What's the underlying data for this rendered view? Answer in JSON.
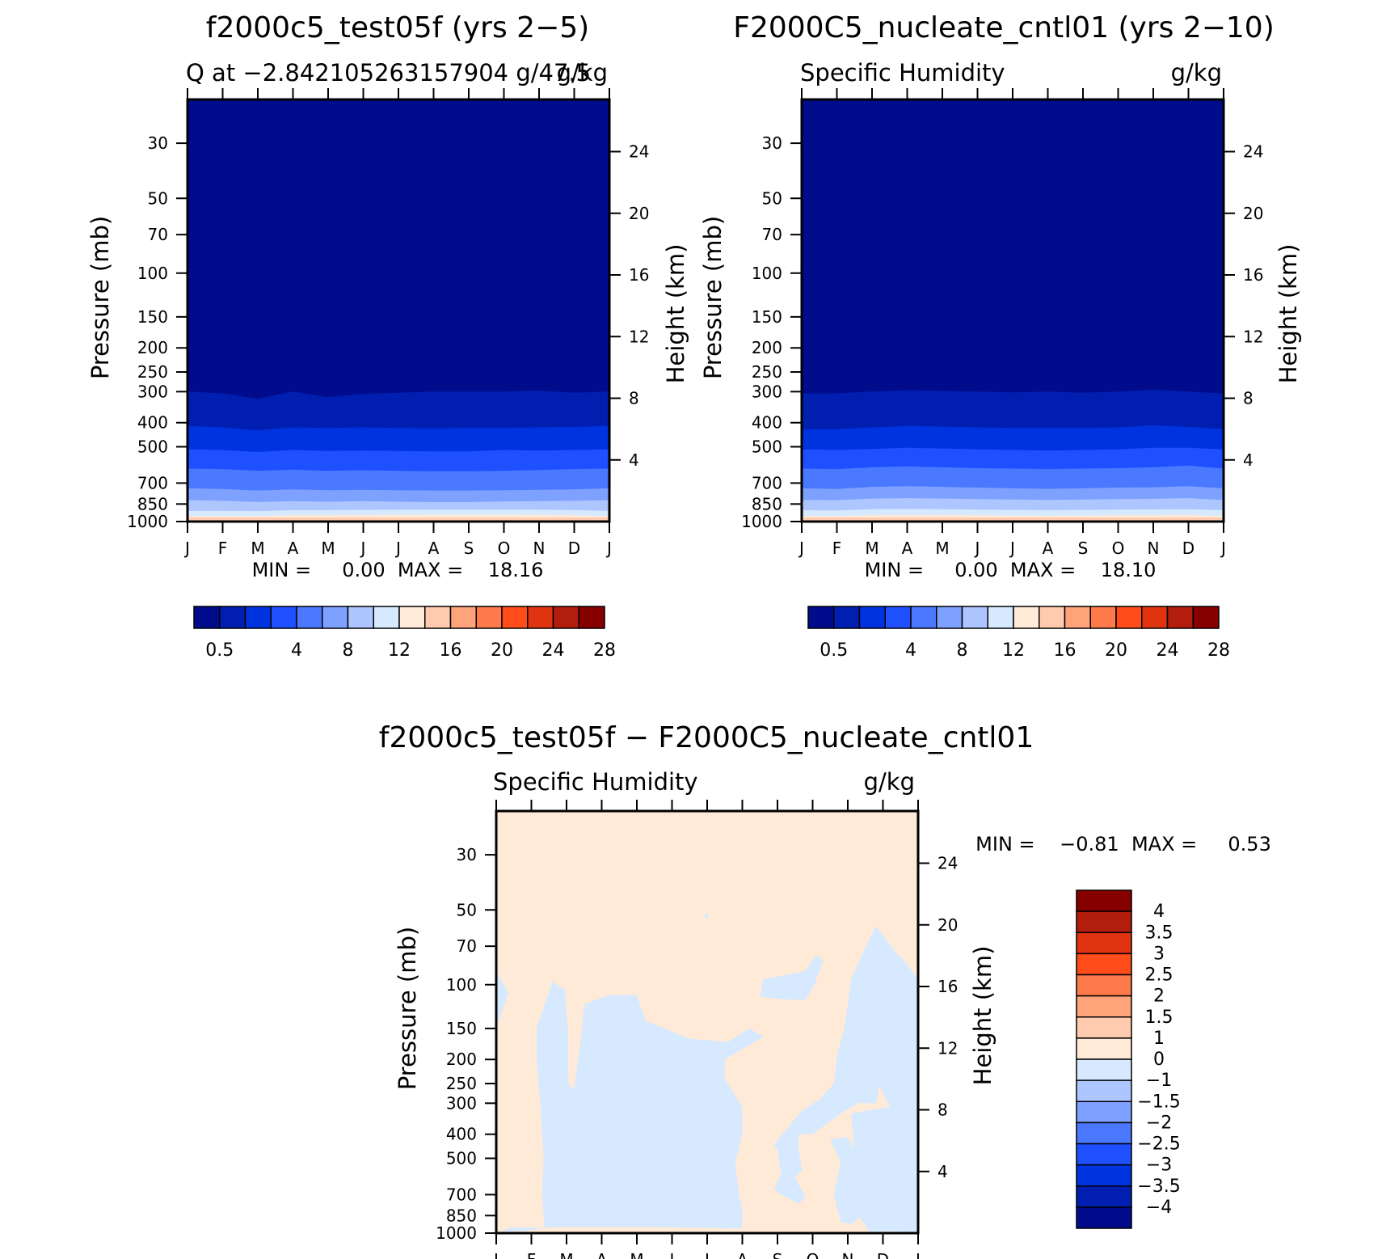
{
  "panels": [
    {
      "title": "f2000c5_test05f (yrs 2−5)",
      "left_string": "Q  at  −2.842105263157904 g/47.5",
      "right_string": "g/kg",
      "stats": "MIN =     0.00  MAX =    18.16",
      "ylabel": "Pressure  (mb)",
      "ylabel_right": "Height  (km)"
    },
    {
      "title": "F2000C5_nucleate_cntl01 (yrs 2−10)",
      "left_string": "Specific Humidity",
      "right_string": "g/kg",
      "stats": "MIN =     0.00  MAX =    18.10",
      "ylabel": "Pressure  (mb)",
      "ylabel_right": "Height  (km)"
    },
    {
      "title": "f2000c5_test05f − F2000C5_nucleate_cntl01",
      "left_string": "Specific Humidity",
      "right_string": "g/kg",
      "stats": "MIN =    −0.81  MAX =     0.53",
      "ylabel": "Pressure  (mb)",
      "ylabel_right": "Height  (km)"
    }
  ],
  "colors": {
    "abs_palette": [
      "#000c8b",
      "#001fb1",
      "#0033e0",
      "#1f50ff",
      "#4a79ff",
      "#7ea0ff",
      "#aec6ff",
      "#d6e9ff",
      "#ffead8",
      "#ffcbb0",
      "#ffa47a",
      "#ff7a4a",
      "#ff4c19",
      "#e03410",
      "#b31d0b",
      "#870000"
    ],
    "diff_palette": [
      "#000c8b",
      "#001fb1",
      "#0033e0",
      "#1f50ff",
      "#4a79ff",
      "#7ea0ff",
      "#aec6ff",
      "#d6e9ff",
      "#ffead8",
      "#ffcbb0",
      "#ffa47a",
      "#ff7a4a",
      "#ff4c19",
      "#e03410",
      "#b31d0b",
      "#870000"
    ]
  },
  "chart_data": [
    {
      "type": "heatmap",
      "title": "f2000c5_test05f (yrs 2−5)",
      "x_ticks": [
        "J",
        "F",
        "M",
        "A",
        "M",
        "J",
        "J",
        "A",
        "S",
        "O",
        "N",
        "D",
        "J"
      ],
      "y_ticks": [
        30,
        50,
        70,
        100,
        150,
        200,
        250,
        300,
        400,
        500,
        700,
        850,
        1000
      ],
      "y_ticks_right": [
        24,
        20,
        16,
        12,
        8,
        4
      ],
      "xlabel": "",
      "ylabel": "Pressure  (mb)",
      "ylabel_right": "Height  (km)",
      "ylim": [
        1000,
        20
      ],
      "y_scale": "log",
      "units": "g/kg",
      "min": 0.0,
      "max": 18.16,
      "contour_levels": [
        0.5,
        1,
        2,
        4,
        6,
        8,
        10,
        12,
        14,
        16,
        18,
        20,
        22,
        24,
        26,
        28
      ],
      "colorbar_labels": [
        "0.5",
        "4",
        "8",
        "12",
        "16",
        "20",
        "24",
        "28"
      ],
      "colorbar_label_bins": [
        0,
        3,
        5,
        7,
        9,
        11,
        13,
        15
      ],
      "band_boundaries_mb": {
        "months": [
          0,
          1,
          2,
          3,
          4,
          5,
          6,
          7,
          8,
          9,
          10,
          11,
          12
        ],
        "b_300": [
          300,
          305,
          320,
          300,
          316,
          306,
          303,
          300,
          300,
          300,
          297,
          303,
          300
        ],
        "b_400": [
          412,
          418,
          430,
          418,
          420,
          418,
          420,
          422,
          420,
          420,
          418,
          416,
          412
        ],
        "b_500": [
          512,
          515,
          525,
          515,
          520,
          518,
          520,
          522,
          522,
          515,
          518,
          515,
          512
        ],
        "b_700": [
          612,
          615,
          625,
          618,
          625,
          622,
          625,
          628,
          628,
          625,
          620,
          615,
          612
        ],
        "b_850": [
          735,
          740,
          750,
          742,
          748,
          745,
          748,
          750,
          750,
          748,
          745,
          742,
          735
        ],
        "b_900": [
          820,
          825,
          835,
          828,
          832,
          828,
          832,
          835,
          835,
          830,
          828,
          825,
          820
        ],
        "b_950": [
          905,
          905,
          908,
          900,
          900,
          898,
          896,
          895,
          895,
          895,
          895,
          900,
          905
        ],
        "b_980": [
          952,
          950,
          950,
          944,
          944,
          942,
          940,
          938,
          938,
          938,
          940,
          944,
          952
        ]
      }
    },
    {
      "type": "heatmap",
      "title": "F2000C5_nucleate_cntl01 (yrs 2−10)",
      "x_ticks": [
        "J",
        "F",
        "M",
        "A",
        "M",
        "J",
        "J",
        "A",
        "S",
        "O",
        "N",
        "D",
        "J"
      ],
      "y_ticks": [
        30,
        50,
        70,
        100,
        150,
        200,
        250,
        300,
        400,
        500,
        700,
        850,
        1000
      ],
      "y_ticks_right": [
        24,
        20,
        16,
        12,
        8,
        4
      ],
      "xlabel": "",
      "ylabel": "Pressure  (mb)",
      "ylabel_right": "Height  (km)",
      "ylim": [
        1000,
        20
      ],
      "y_scale": "log",
      "units": "g/kg",
      "min": 0.0,
      "max": 18.1,
      "contour_levels": [
        0.5,
        1,
        2,
        4,
        6,
        8,
        10,
        12,
        14,
        16,
        18,
        20,
        22,
        24,
        26,
        28
      ],
      "colorbar_labels": [
        "0.5",
        "4",
        "8",
        "12",
        "16",
        "20",
        "24",
        "28"
      ],
      "colorbar_label_bins": [
        0,
        3,
        5,
        7,
        9,
        11,
        13,
        15
      ],
      "band_boundaries_mb": {
        "months": [
          0,
          1,
          2,
          3,
          4,
          5,
          6,
          7,
          8,
          9,
          10,
          11,
          12
        ],
        "b_300": [
          305,
          305,
          300,
          296,
          298,
          300,
          302,
          300,
          303,
          300,
          295,
          300,
          305
        ],
        "b_400": [
          425,
          425,
          418,
          412,
          415,
          418,
          420,
          420,
          420,
          418,
          410,
          416,
          425
        ],
        "b_500": [
          512,
          515,
          510,
          505,
          508,
          512,
          515,
          518,
          515,
          512,
          505,
          505,
          512
        ],
        "b_700": [
          612,
          615,
          605,
          600,
          605,
          610,
          612,
          615,
          612,
          610,
          605,
          595,
          612
        ],
        "b_850": [
          735,
          740,
          725,
          720,
          725,
          730,
          735,
          738,
          735,
          730,
          728,
          720,
          735
        ],
        "b_900": [
          818,
          820,
          808,
          805,
          808,
          812,
          815,
          818,
          815,
          812,
          810,
          805,
          818
        ],
        "b_950": [
          900,
          902,
          892,
          890,
          892,
          895,
          898,
          900,
          898,
          895,
          894,
          892,
          900
        ],
        "b_980": [
          950,
          950,
          944,
          942,
          942,
          944,
          946,
          948,
          946,
          944,
          944,
          942,
          950
        ]
      }
    },
    {
      "type": "heatmap",
      "title": "f2000c5_test05f − F2000C5_nucleate_cntl01",
      "x_ticks": [
        "J",
        "F",
        "M",
        "A",
        "M",
        "J",
        "J",
        "A",
        "S",
        "O",
        "N",
        "D",
        "J"
      ],
      "y_ticks": [
        30,
        50,
        70,
        100,
        150,
        200,
        250,
        300,
        400,
        500,
        700,
        850,
        1000
      ],
      "y_ticks_right": [
        24,
        20,
        16,
        12,
        8,
        4
      ],
      "xlabel": "",
      "ylabel": "Pressure  (mb)",
      "ylabel_right": "Height  (km)",
      "ylim": [
        1000,
        20
      ],
      "y_scale": "log",
      "units": "g/kg",
      "min": -0.81,
      "max": 0.53,
      "contour_levels": [
        -4,
        -3.5,
        -3,
        -2.5,
        -2,
        -1.5,
        -1,
        0,
        1,
        1.5,
        2,
        2.5,
        3,
        3.5,
        4
      ],
      "colorbar_labels": [
        "4",
        "3.5",
        "3",
        "2.5",
        "2",
        "1.5",
        "1",
        "0",
        "−1",
        "−1.5",
        "−2",
        "−2.5",
        "−3",
        "−3.5",
        "−4"
      ],
      "negative_regions": [
        {
          "name": "left-upper",
          "points": [
            [
              0,
              88
            ],
            [
              0.35,
              108
            ],
            [
              0,
              148
            ]
          ]
        },
        {
          "name": "main-central",
          "points": [
            [
              1.15,
              150
            ],
            [
              1.6,
              97
            ],
            [
              1.95,
              105
            ],
            [
              2.05,
              160
            ],
            [
              2.05,
              250
            ],
            [
              2.2,
              265
            ],
            [
              2.4,
              170
            ],
            [
              2.5,
              120
            ],
            [
              3.2,
              110
            ],
            [
              4.0,
              110
            ],
            [
              4.25,
              140
            ],
            [
              5.5,
              165
            ],
            [
              6.6,
              170
            ],
            [
              7.2,
              150
            ],
            [
              7.6,
              162
            ],
            [
              6.5,
              200
            ],
            [
              6.5,
              240
            ],
            [
              7.0,
              310
            ],
            [
              7.0,
              400
            ],
            [
              6.8,
              520
            ],
            [
              6.9,
              690
            ],
            [
              7.0,
              800
            ],
            [
              7.0,
              950
            ],
            [
              6.6,
              960
            ],
            [
              6.1,
              950
            ],
            [
              4.5,
              945
            ],
            [
              3.8,
              945
            ],
            [
              3.2,
              945
            ],
            [
              1.5,
              945
            ],
            [
              0.9,
              980
            ],
            [
              0,
              985
            ],
            [
              0,
              1000
            ],
            [
              0.4,
              950
            ],
            [
              1.35,
              950
            ],
            [
              1.35,
              850
            ],
            [
              1.3,
              700
            ],
            [
              1.35,
              500
            ],
            [
              1.25,
              300
            ],
            [
              1.15,
              200
            ]
          ]
        },
        {
          "name": "right-upper-blob",
          "points": [
            [
              7.6,
              95
            ],
            [
              8.8,
              88
            ],
            [
              9.1,
              76
            ],
            [
              9.3,
              80
            ],
            [
              9.05,
              100
            ],
            [
              8.8,
              115
            ],
            [
              8.3,
              115
            ],
            [
              7.5,
              112
            ]
          ]
        },
        {
          "name": "right-side",
          "points": [
            [
              10.1,
              95
            ],
            [
              10.4,
              76
            ],
            [
              10.8,
              58
            ],
            [
              11.4,
              75
            ],
            [
              11.6,
              80
            ],
            [
              12,
              95
            ],
            [
              12,
              1000
            ],
            [
              11.5,
              985
            ],
            [
              10.6,
              985
            ],
            [
              10.5,
              930
            ],
            [
              10.3,
              850
            ],
            [
              10.1,
              720
            ],
            [
              10.2,
              500
            ],
            [
              10.1,
              330
            ],
            [
              10.6,
              320
            ],
            [
              11.2,
              310
            ],
            [
              10.9,
              255
            ],
            [
              10.8,
              300
            ],
            [
              10.3,
              300
            ],
            [
              9.8,
              330
            ],
            [
              9.0,
              400
            ],
            [
              8.6,
              400
            ],
            [
              8.6,
              460
            ],
            [
              8.7,
              560
            ],
            [
              8.5,
              600
            ],
            [
              8.7,
              680
            ],
            [
              8.8,
              720
            ],
            [
              8.6,
              760
            ],
            [
              8.1,
              700
            ],
            [
              7.9,
              660
            ],
            [
              8.1,
              580
            ],
            [
              8.0,
              460
            ],
            [
              7.9,
              440
            ],
            [
              8.7,
              320
            ],
            [
              9.2,
              290
            ],
            [
              9.6,
              250
            ],
            [
              9.7,
              190
            ],
            [
              9.9,
              150
            ]
          ]
        },
        {
          "name": "right-inner",
          "points": [
            [
              9.5,
              420
            ],
            [
              10.0,
              410
            ],
            [
              10.3,
              500
            ],
            [
              10.2,
              700
            ],
            [
              10.4,
              850
            ],
            [
              10.1,
              920
            ],
            [
              9.8,
              905
            ],
            [
              9.6,
              700
            ],
            [
              9.8,
              520
            ]
          ]
        },
        {
          "name": "small-dot",
          "points": [
            [
              5.9,
              52
            ],
            [
              6.05,
              52
            ],
            [
              6.0,
              55
            ]
          ]
        }
      ]
    }
  ]
}
